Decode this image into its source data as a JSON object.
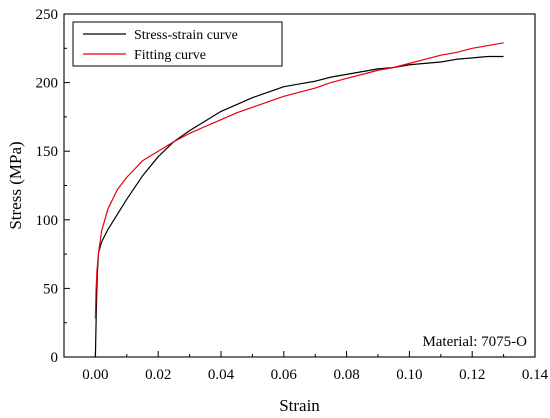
{
  "chart_data": {
    "type": "line",
    "xlabel": "Strain",
    "ylabel": "Stress (MPa)",
    "xlim": [
      -0.01,
      0.14
    ],
    "ylim": [
      0,
      250
    ],
    "x_ticks": [
      "0.00",
      "0.02",
      "0.04",
      "0.06",
      "0.08",
      "0.10",
      "0.12",
      "0.14"
    ],
    "y_ticks": [
      "0",
      "50",
      "100",
      "150",
      "200",
      "250"
    ],
    "annotation": "Material: 7075-O",
    "legend_position": "top-left",
    "grid": false,
    "series": [
      {
        "name": "Stress-strain curve",
        "color": "#000000",
        "x": [
          0.0,
          0.0003,
          0.0006,
          0.001,
          0.002,
          0.004,
          0.007,
          0.01,
          0.015,
          0.02,
          0.025,
          0.03,
          0.035,
          0.04,
          0.045,
          0.05,
          0.055,
          0.06,
          0.065,
          0.07,
          0.075,
          0.08,
          0.085,
          0.09,
          0.095,
          0.1,
          0.105,
          0.11,
          0.115,
          0.12,
          0.125,
          0.13
        ],
        "y": [
          0,
          35,
          60,
          76,
          84,
          93,
          104,
          115,
          132,
          146,
          157,
          165,
          172,
          179,
          184,
          189,
          193,
          197,
          199,
          201,
          204,
          206,
          208,
          210,
          211,
          213,
          214,
          215,
          217,
          218,
          219,
          219
        ]
      },
      {
        "name": "Fitting curve",
        "color": "#e8000b",
        "x": [
          0.0,
          0.0002,
          0.0005,
          0.001,
          0.002,
          0.004,
          0.007,
          0.01,
          0.015,
          0.02,
          0.025,
          0.03,
          0.035,
          0.04,
          0.045,
          0.05,
          0.055,
          0.06,
          0.065,
          0.07,
          0.075,
          0.08,
          0.085,
          0.09,
          0.095,
          0.1,
          0.105,
          0.11,
          0.115,
          0.12,
          0.125,
          0.13
        ],
        "y": [
          28,
          48,
          63,
          76,
          92,
          108,
          122,
          131,
          143,
          150,
          157,
          163,
          168,
          173,
          178,
          182,
          186,
          190,
          193,
          196,
          200,
          203,
          206,
          209,
          211,
          214,
          217,
          220,
          222,
          225,
          227,
          229
        ]
      }
    ]
  }
}
